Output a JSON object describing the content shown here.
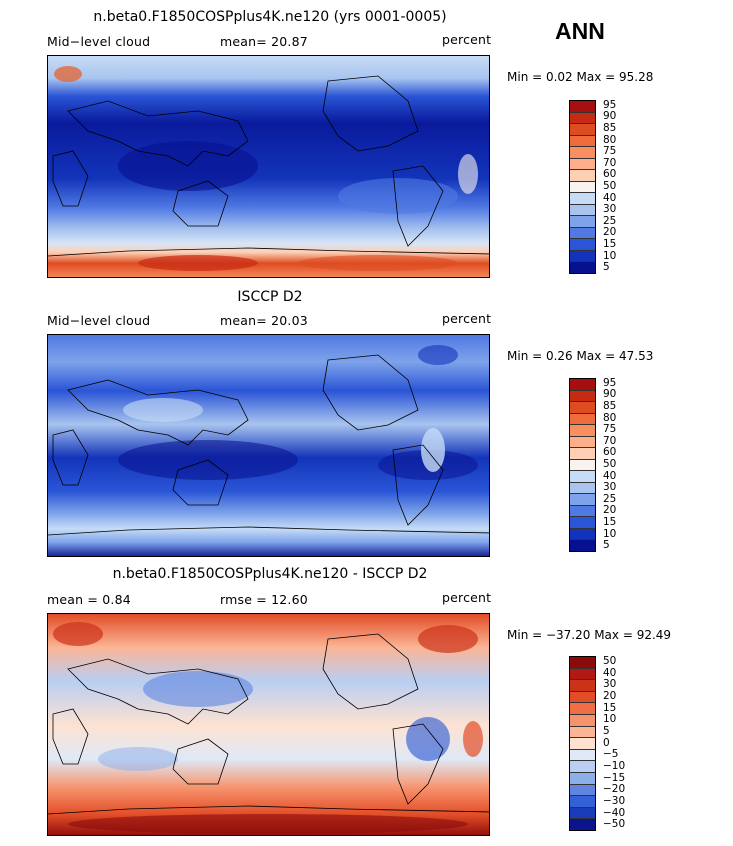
{
  "season": "ANN",
  "panels": [
    {
      "title": "n.beta0.F1850COSPplus4K.ne120 (yrs 0001-0005)",
      "left_label": "Mid−level cloud",
      "center_label": "mean=  20.87",
      "units": "percent",
      "minmax": "Min =    0.02 Max =  95.28",
      "colorbar": {
        "labels": [
          "95",
          "90",
          "85",
          "80",
          "75",
          "70",
          "60",
          "50",
          "40",
          "30",
          "25",
          "20",
          "15",
          "10",
          "5"
        ],
        "colors": [
          "#a50f0f",
          "#c72a12",
          "#de4c22",
          "#f06b3c",
          "#f98e60",
          "#fdae8a",
          "#fdd0b6",
          "#f8f3ee",
          "#c6dcf6",
          "#a8c4ef",
          "#7ea3ea",
          "#5079e3",
          "#2a55d6",
          "#1334ba",
          "#07108e"
        ]
      }
    },
    {
      "title": "ISCCP D2",
      "left_label": "Mid−level cloud",
      "center_label": "mean=  20.03",
      "units": "percent",
      "minmax": "Min =    0.26 Max =  47.53",
      "colorbar": {
        "labels": [
          "95",
          "90",
          "85",
          "80",
          "75",
          "70",
          "60",
          "50",
          "40",
          "30",
          "25",
          "20",
          "15",
          "10",
          "5"
        ],
        "colors": [
          "#a50f0f",
          "#c72a12",
          "#de4c22",
          "#f06b3c",
          "#f98e60",
          "#fdae8a",
          "#fdd0b6",
          "#f8f3ee",
          "#c6dcf6",
          "#a8c4ef",
          "#7ea3ea",
          "#5079e3",
          "#2a55d6",
          "#1334ba",
          "#07108e"
        ]
      }
    },
    {
      "title": "n.beta0.F1850COSPplus4K.ne120 - ISCCP D2",
      "left_label": "mean =    0.84",
      "center_label": "rmse =  12.60",
      "units": "percent",
      "minmax": "Min = −37.20 Max =  92.49",
      "colorbar": {
        "labels": [
          "50",
          "40",
          "30",
          "20",
          "15",
          "10",
          "5",
          "0",
          "−5",
          "−10",
          "−15",
          "−20",
          "−30",
          "−40",
          "−50"
        ],
        "colors": [
          "#8b0b0b",
          "#b01a12",
          "#cc3218",
          "#e24d28",
          "#f06d45",
          "#f7936c",
          "#fbb596",
          "#fde2d2",
          "#dfe9f7",
          "#b9cef2",
          "#8caeea",
          "#5f85e1",
          "#3460d5",
          "#1a3cbc",
          "#0a148c"
        ]
      }
    }
  ]
}
